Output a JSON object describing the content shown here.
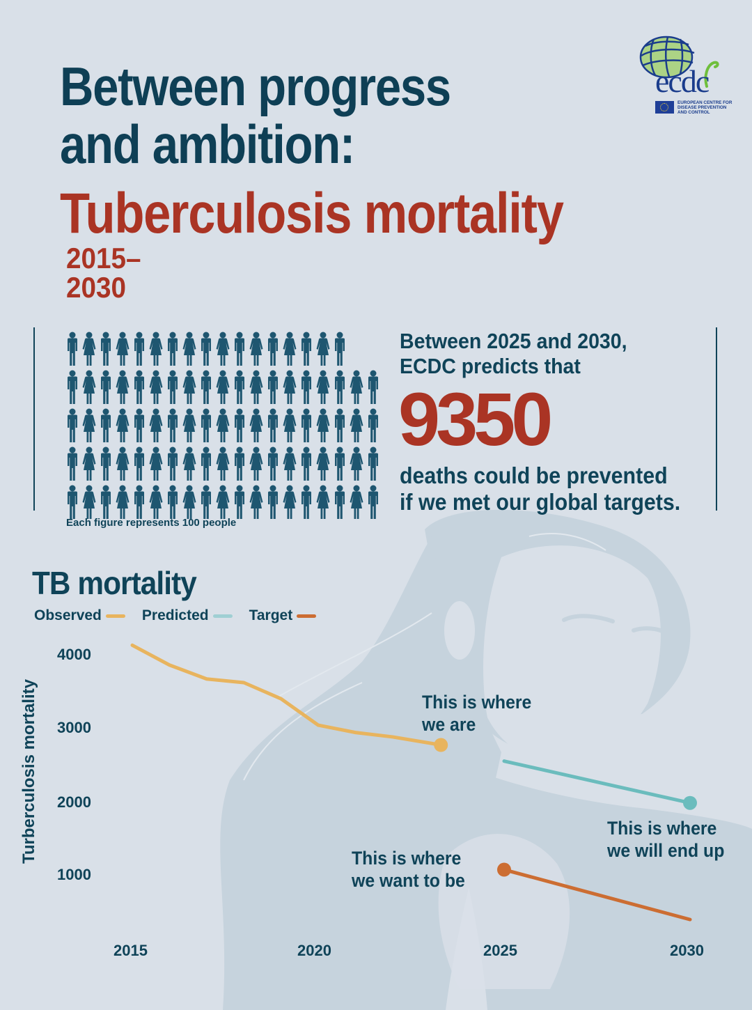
{
  "header": {
    "title_line1": "Between progress",
    "title_line2": "and ambition:",
    "subject": "Tuberculosis mortality",
    "years": "2015–2030"
  },
  "logo": {
    "wordmark": "ecdc",
    "subtitle": "EUROPEAN CENTRE FOR\nDISEASE PREVENTION\nAND CONTROL"
  },
  "pictogram": {
    "caption": "Each figure represents 100 people",
    "rows": [
      17,
      19,
      19,
      19,
      19
    ],
    "figure_color": "#1e5670"
  },
  "stat": {
    "intro_line1": "Between 2025 and 2030,",
    "intro_line2": "ECDC predicts that",
    "number": "9350",
    "outro_line1": "deaths could be prevented",
    "outro_line2": "if we met our global targets."
  },
  "colors": {
    "background": "#d9e0e8",
    "navy": "#0f4358",
    "red": "#aa3424",
    "observed": "#e8b45e",
    "predicted": "#6bbcbd",
    "target": "#cc6d32"
  },
  "annotations": {
    "we_are_1": "This is where",
    "we_are_2": "we are",
    "end_up_1": "This is where",
    "end_up_2": "we will end up",
    "want_1": "This is where",
    "want_2": "we want to be"
  },
  "chart_data": {
    "type": "line",
    "title": "TB mortality",
    "xlabel": "",
    "ylabel": "Turberculosis mortality",
    "x_ticks": [
      "2015",
      "2020",
      "2025",
      "2030"
    ],
    "y_ticks": [
      "4000",
      "3000",
      "2000",
      "1000"
    ],
    "xlim": [
      2015,
      2030
    ],
    "ylim": [
      400,
      4200
    ],
    "grid": false,
    "legend": [
      "Observed",
      "Predicted",
      "Target"
    ],
    "legend_position": "top-left",
    "series": [
      {
        "name": "Observed",
        "color": "#e8b45e",
        "x": [
          2015,
          2016,
          2017,
          2018,
          2019,
          2020,
          2021,
          2022,
          2023.3
        ],
        "values": [
          4130,
          3860,
          3670,
          3620,
          3400,
          3040,
          2940,
          2880,
          2770
        ]
      },
      {
        "name": "Predicted",
        "color": "#6bbcbd",
        "x": [
          2025,
          2030
        ],
        "values": [
          2550,
          1980
        ]
      },
      {
        "name": "Target",
        "color": "#cc6d32",
        "x": [
          2025,
          2030
        ],
        "values": [
          1070,
          390
        ]
      }
    ],
    "annotations": [
      "This is where we are",
      "This is where we will end up",
      "This is where we want to be"
    ]
  }
}
